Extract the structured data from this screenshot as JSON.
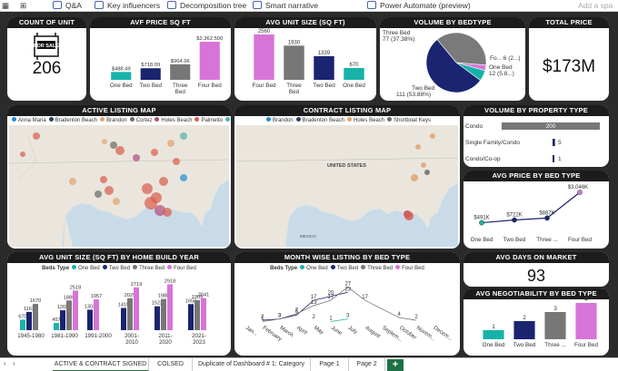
{
  "toolbar": {
    "qa": "Q&A",
    "key_influencers": "Key influencers",
    "decomposition_tree": "Decomposition tree",
    "smart_narrative": "Smart narrative",
    "power_automate": "Power Automate (preview)",
    "add_space": "Add a spa"
  },
  "count_of_unit": {
    "title": "COUNT OF UNIT",
    "value": "206",
    "sign": "FOR SALE"
  },
  "avg_price_sqft": {
    "title": "AVF PRICE SQ FT",
    "colors": [
      "#17b3a8",
      "#1a2470",
      "#777777",
      "#d874d8"
    ],
    "chart_data": {
      "type": "bar",
      "categories": [
        "One Bed",
        "Two Bed",
        "Three Bed",
        "Four Bed"
      ],
      "values": [
        488.49,
        718.09,
        964.96,
        2362.5
      ],
      "labels": [
        "$488.49",
        "$718.09",
        "$964.96",
        "$2,362.500"
      ]
    }
  },
  "avg_unit_size": {
    "title": "AVG UNIT SIZE (SQ FT)",
    "colors": [
      "#d874d8",
      "#777777",
      "#1a2470",
      "#17b3a8"
    ],
    "chart_data": {
      "type": "bar",
      "categories": [
        "Four Bed",
        "Three Bed",
        "Two Bed",
        "One Bed"
      ],
      "values": [
        2560,
        1930,
        1339,
        670
      ],
      "labels": [
        "2560",
        "1930",
        "1339",
        "670"
      ]
    }
  },
  "volume_by_bedtype": {
    "title": "VOLUME BY BEDTYPE",
    "labels": {
      "three": "Three Bed",
      "three_val": "77 (37.38%)",
      "four": "Fo... 6 (2...)",
      "one": "One Bed",
      "one_val": "12 (5.8...)",
      "two": "Two Bed",
      "two_val": "111 (53.88%)"
    },
    "chart_data": {
      "type": "pie",
      "categories": [
        "Two Bed",
        "Three Bed",
        "One Bed",
        "Four Bed"
      ],
      "values": [
        111,
        77,
        12,
        6
      ],
      "colors": [
        "#1a2470",
        "#7a7a7a",
        "#17b3a8",
        "#d874d8"
      ]
    }
  },
  "total_price": {
    "title": "TOTAL PRICE",
    "value": "$173M"
  },
  "active_map": {
    "title": "ACTIVE LISTING MAP",
    "legend": [
      "Anna Maria",
      "Bradenton Beach",
      "Brandon",
      "Cortez",
      "Holes Beach",
      "Palmetto",
      "Shortboat Keys"
    ],
    "legend_colors": [
      "#1e8bd6",
      "#27405f",
      "#e2a36e",
      "#6a6a6a",
      "#b04a7e",
      "#d85b4a",
      "#4fb3a8"
    ]
  },
  "contract_map": {
    "title": "CONTRACT LISTING MAP",
    "legend": [
      "Brandon",
      "Bradenton Beach",
      "Holes Beach",
      "Shortboat Keys"
    ],
    "legend_colors": [
      "#1e8bd6",
      "#27405f",
      "#e2a36e",
      "#6a6a6a"
    ],
    "label": "UNITED STATES",
    "mexico": "MEXICO"
  },
  "volume_by_property": {
    "title": "VOLUME BY PROPERTY TYPE",
    "chart_data": {
      "type": "bar",
      "categories": [
        "Condo",
        "Single Family/Condo",
        "Condo/Co-op"
      ],
      "values": [
        200,
        5,
        1
      ]
    }
  },
  "avg_price_bedtype": {
    "title": "AVG PRICE BY BED TYPE",
    "chart_data": {
      "type": "line",
      "categories": [
        "One Bed",
        "Two Bed",
        "Three ...",
        "Four Bed"
      ],
      "values": [
        491,
        722,
        887,
        3046
      ],
      "labels": [
        "$491K",
        "$722K",
        "$887K",
        "$3,046K"
      ]
    }
  },
  "avg_unit_size_year": {
    "title": "AVG UNIT SIZE (SQ FT) BY HOME BUILD YEAR",
    "legend_label": "Beds Type",
    "series_names": [
      "One Bed",
      "Two Bed",
      "Three Bed",
      "Four Bed"
    ],
    "colors": [
      "#17b3a8",
      "#1a2470",
      "#777777",
      "#d874d8"
    ],
    "chart_data": {
      "type": "bar",
      "categories": [
        "1945-1980",
        "1981-1990",
        "1991-2000",
        "2001-2010",
        "2011-2020",
        "2021-2023"
      ],
      "series": [
        {
          "name": "One Bed",
          "values": [
            670,
            457,
            null,
            null,
            null,
            null
          ]
        },
        {
          "name": "Two Bed",
          "values": [
            1163,
            1265,
            1303,
            1415,
            1522,
            1658
          ]
        },
        {
          "name": "Three Bed",
          "values": [
            1670,
            1889,
            null,
            2029,
            1988,
            1905
          ]
        },
        {
          "name": "Four Bed",
          "values": [
            null,
            2518,
            1957,
            2719,
            2918,
            2041
          ]
        }
      ],
      "labels": [
        "670",
        "1163",
        "1670",
        "457",
        "1265",
        "1889",
        "2518",
        "1303",
        "1957",
        "1415",
        "2029",
        "2719",
        "1522",
        "1988",
        "2918",
        "1658",
        "1905",
        "2041"
      ]
    }
  },
  "month_listing": {
    "title": "MONTH WISE LISTING BY BED TYPE",
    "legend_label": "Beds Type",
    "series_names": [
      "One Bed",
      "Two Bed",
      "Three Bed",
      "Four Bed"
    ],
    "colors": [
      "#17b3a8",
      "#1a2470",
      "#777777",
      "#d874d8"
    ],
    "chart_data": {
      "type": "line",
      "categories": [
        "Jan...",
        "February",
        "March",
        "April",
        "May",
        "June",
        "July",
        "August",
        "Septem...",
        "October",
        "Novem...",
        "Decem..."
      ],
      "series": [
        {
          "name": "One Bed",
          "values": [
            null,
            null,
            null,
            null,
            null,
            1,
            3,
            null,
            null,
            null,
            null,
            null
          ]
        },
        {
          "name": "Two Bed",
          "values": [
            null,
            2,
            3,
            6,
            17,
            20,
            23,
            null,
            null,
            null,
            null,
            null
          ]
        },
        {
          "name": "Three Bed",
          "values": [
            null,
            1,
            3,
            7,
            13,
            17,
            27,
            17,
            null,
            4,
            2,
            null
          ]
        },
        {
          "name": "Four Bed",
          "values": [
            null,
            null,
            null,
            null,
            2,
            null,
            null,
            null,
            null,
            null,
            null,
            null
          ]
        }
      ],
      "labels": [
        "2",
        "3",
        "6",
        "17",
        "20",
        "23",
        "1",
        "3",
        "7",
        "13",
        "17",
        "27",
        "17",
        "4",
        "2",
        "1",
        "3",
        "2"
      ]
    }
  },
  "avg_days_market": {
    "title": "AVG DAYS ON MARKET",
    "value": "93"
  },
  "avg_negotiability": {
    "title": "AVG NEGOTIABILITY BY BED TYPE",
    "colors": [
      "#17b3a8",
      "#1a2470",
      "#777777",
      "#d874d8"
    ],
    "chart_data": {
      "type": "bar",
      "categories": [
        "One Bed",
        "Two Bed",
        "Three ...",
        "Four Bed"
      ],
      "values": [
        1,
        2,
        3,
        4
      ],
      "labels": [
        "1",
        "2",
        "3",
        "4"
      ]
    }
  },
  "tabs": [
    "ACTIVE & CONTRACT SIGNED",
    "COLSED",
    "Duplicate of Dashboard # 1: Category",
    "Page 1",
    "Page 2"
  ],
  "add_tab": "+"
}
